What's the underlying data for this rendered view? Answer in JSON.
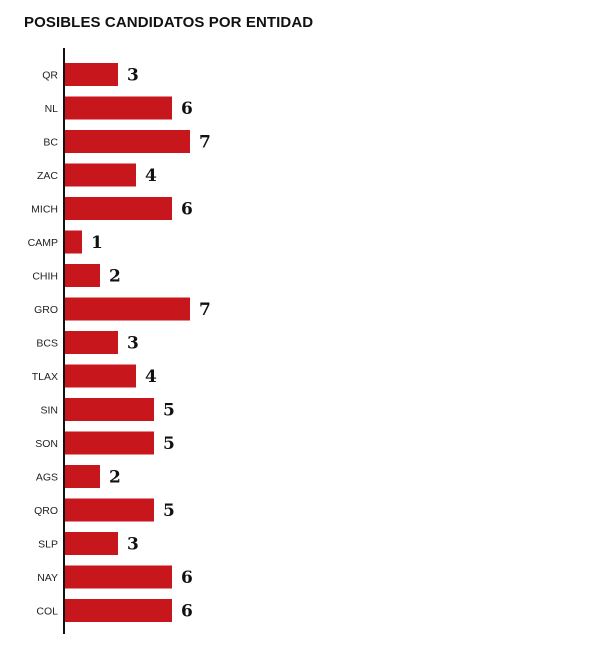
{
  "chart_data": {
    "type": "bar",
    "orientation": "horizontal",
    "title": "POSIBLES CANDIDATOS POR ENTIDAD",
    "categories": [
      "QR",
      "NL",
      "BC",
      "ZAC",
      "MICH",
      "CAMP",
      "CHIH",
      "GRO",
      "BCS",
      "TLAX",
      "SIN",
      "SON",
      "AGS",
      "QRO",
      "SLP",
      "NAY",
      "COL"
    ],
    "values": [
      3,
      6,
      7,
      4,
      6,
      1,
      2,
      7,
      3,
      4,
      5,
      5,
      2,
      5,
      3,
      6,
      6
    ],
    "value_labels": [
      "3",
      "6",
      "7",
      "4",
      "6",
      "1",
      "2",
      "7",
      "3",
      "4",
      "5",
      "5",
      "2",
      "5",
      "3",
      "6",
      "6"
    ],
    "xlim": [
      0,
      7
    ],
    "grid": false,
    "bar_color": "#c8161d"
  }
}
